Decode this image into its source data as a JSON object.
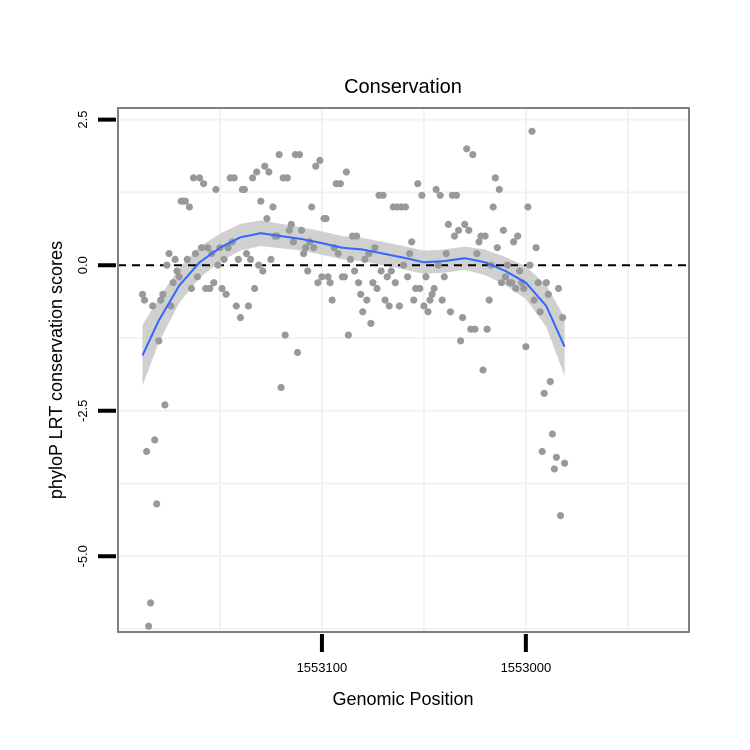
{
  "chart_data": {
    "type": "scatter",
    "title": "Conservation",
    "xlabel": "Genomic Position",
    "ylabel": "phyloP LRT conservation scores",
    "x_reversed": true,
    "xlim": [
      1553200,
      1552920
    ],
    "ylim": [
      -6.3,
      2.7
    ],
    "x_ticks": [
      {
        "value": 1553100,
        "label": "1553100"
      },
      {
        "value": 1553000,
        "label": "1553000"
      }
    ],
    "y_ticks": [
      {
        "value": 2.5,
        "label": "2.5"
      },
      {
        "value": 0,
        "label": "0.0"
      },
      {
        "value": -2.5,
        "label": "-2.5"
      },
      {
        "value": -5,
        "label": "-5.0"
      }
    ],
    "grid": true,
    "reference_line": {
      "y": 0,
      "style": "dashed"
    },
    "colors": {
      "points": "#999999",
      "smooth": "#3366ff",
      "band": "#c8c8c8",
      "frame": "#7f7f7f",
      "grid": "#f2f2f2"
    },
    "points": [
      [
        1553188,
        -0.5
      ],
      [
        1553187,
        -0.6
      ],
      [
        1553186,
        -3.2
      ],
      [
        1553185,
        -6.2
      ],
      [
        1553184,
        -5.8
      ],
      [
        1553183,
        -0.7
      ],
      [
        1553182,
        -3.0
      ],
      [
        1553181,
        -4.1
      ],
      [
        1553180,
        -1.3
      ],
      [
        1553179,
        -0.6
      ],
      [
        1553178,
        -0.5
      ],
      [
        1553177,
        -2.4
      ],
      [
        1553176,
        0.0
      ],
      [
        1553175,
        0.2
      ],
      [
        1553174,
        -0.7
      ],
      [
        1553173,
        -0.3
      ],
      [
        1553172,
        0.1
      ],
      [
        1553171,
        -0.1
      ],
      [
        1553170,
        -0.2
      ],
      [
        1553169,
        1.1
      ],
      [
        1553168,
        1.1
      ],
      [
        1553167,
        1.1
      ],
      [
        1553166,
        0.1
      ],
      [
        1553165,
        1.0
      ],
      [
        1553164,
        -0.4
      ],
      [
        1553163,
        1.5
      ],
      [
        1553162,
        0.2
      ],
      [
        1553161,
        -0.2
      ],
      [
        1553160,
        1.5
      ],
      [
        1553159,
        0.3
      ],
      [
        1553158,
        1.4
      ],
      [
        1553157,
        -0.4
      ],
      [
        1553156,
        0.3
      ],
      [
        1553155,
        -0.4
      ],
      [
        1553154,
        0.2
      ],
      [
        1553153,
        -0.3
      ],
      [
        1553152,
        1.3
      ],
      [
        1553151,
        0.0
      ],
      [
        1553150,
        0.3
      ],
      [
        1553149,
        -0.4
      ],
      [
        1553148,
        0.1
      ],
      [
        1553147,
        -0.5
      ],
      [
        1553146,
        0.3
      ],
      [
        1553145,
        1.5
      ],
      [
        1553144,
        0.4
      ],
      [
        1553143,
        1.5
      ],
      [
        1553142,
        -0.7
      ],
      [
        1553141,
        0.1
      ],
      [
        1553140,
        -0.9
      ],
      [
        1553139,
        1.3
      ],
      [
        1553138,
        1.3
      ],
      [
        1553137,
        0.2
      ],
      [
        1553136,
        -0.7
      ],
      [
        1553135,
        0.1
      ],
      [
        1553134,
        1.5
      ],
      [
        1553133,
        -0.4
      ],
      [
        1553132,
        1.6
      ],
      [
        1553131,
        0.0
      ],
      [
        1553130,
        1.1
      ],
      [
        1553129,
        -0.1
      ],
      [
        1553128,
        1.7
      ],
      [
        1553127,
        0.8
      ],
      [
        1553126,
        1.6
      ],
      [
        1553125,
        0.1
      ],
      [
        1553124,
        1.0
      ],
      [
        1553123,
        0.5
      ],
      [
        1553122,
        0.5
      ],
      [
        1553121,
        1.9
      ],
      [
        1553120,
        -2.1
      ],
      [
        1553119,
        1.5
      ],
      [
        1553118,
        -1.2
      ],
      [
        1553117,
        1.5
      ],
      [
        1553116,
        0.6
      ],
      [
        1553115,
        0.7
      ],
      [
        1553114,
        0.4
      ],
      [
        1553113,
        1.9
      ],
      [
        1553112,
        -1.5
      ],
      [
        1553111,
        1.9
      ],
      [
        1553110,
        0.6
      ],
      [
        1553109,
        0.2
      ],
      [
        1553108,
        0.3
      ],
      [
        1553107,
        -0.1
      ],
      [
        1553106,
        0.4
      ],
      [
        1553105,
        1.0
      ],
      [
        1553104,
        0.3
      ],
      [
        1553103,
        1.7
      ],
      [
        1553102,
        -0.3
      ],
      [
        1553101,
        1.8
      ],
      [
        1553100,
        -0.2
      ],
      [
        1553099,
        0.8
      ],
      [
        1553098,
        0.8
      ],
      [
        1553097,
        -0.2
      ],
      [
        1553096,
        -0.3
      ],
      [
        1553095,
        -0.6
      ],
      [
        1553094,
        0.3
      ],
      [
        1553093,
        1.4
      ],
      [
        1553092,
        0.2
      ],
      [
        1553091,
        1.4
      ],
      [
        1553090,
        -0.2
      ],
      [
        1553089,
        -0.2
      ],
      [
        1553088,
        1.6
      ],
      [
        1553087,
        -1.2
      ],
      [
        1553086,
        0.1
      ],
      [
        1553085,
        0.5
      ],
      [
        1553084,
        -0.1
      ],
      [
        1553083,
        0.5
      ],
      [
        1553082,
        -0.3
      ],
      [
        1553081,
        -0.5
      ],
      [
        1553080,
        -0.8
      ],
      [
        1553079,
        0.1
      ],
      [
        1553078,
        -0.6
      ],
      [
        1553077,
        0.2
      ],
      [
        1553076,
        -1.0
      ],
      [
        1553075,
        -0.3
      ],
      [
        1553074,
        0.3
      ],
      [
        1553073,
        -0.4
      ],
      [
        1553072,
        1.2
      ],
      [
        1553071,
        -0.1
      ],
      [
        1553070,
        1.2
      ],
      [
        1553069,
        -0.6
      ],
      [
        1553068,
        -0.2
      ],
      [
        1553067,
        -0.7
      ],
      [
        1553066,
        -0.1
      ],
      [
        1553065,
        1.0
      ],
      [
        1553064,
        -0.3
      ],
      [
        1553063,
        1.0
      ],
      [
        1553062,
        -0.7
      ],
      [
        1553061,
        1.0
      ],
      [
        1553060,
        0.0
      ],
      [
        1553059,
        1.0
      ],
      [
        1553058,
        -0.2
      ],
      [
        1553057,
        0.2
      ],
      [
        1553056,
        0.4
      ],
      [
        1553055,
        -0.6
      ],
      [
        1553054,
        -0.4
      ],
      [
        1553053,
        1.4
      ],
      [
        1553052,
        -0.4
      ],
      [
        1553051,
        1.2
      ],
      [
        1553050,
        -0.7
      ],
      [
        1553049,
        -0.2
      ],
      [
        1553048,
        -0.8
      ],
      [
        1553047,
        -0.6
      ],
      [
        1553046,
        -0.5
      ],
      [
        1553045,
        -0.4
      ],
      [
        1553044,
        1.3
      ],
      [
        1553043,
        0.0
      ],
      [
        1553042,
        1.2
      ],
      [
        1553041,
        -0.6
      ],
      [
        1553040,
        -0.2
      ],
      [
        1553039,
        0.2
      ],
      [
        1553038,
        0.7
      ],
      [
        1553037,
        -0.8
      ],
      [
        1553036,
        1.2
      ],
      [
        1553035,
        0.5
      ],
      [
        1553034,
        1.2
      ],
      [
        1553033,
        0.6
      ],
      [
        1553032,
        -1.3
      ],
      [
        1553031,
        -0.9
      ],
      [
        1553030,
        0.7
      ],
      [
        1553029,
        2.0
      ],
      [
        1553028,
        0.6
      ],
      [
        1553027,
        -1.1
      ],
      [
        1553026,
        1.9
      ],
      [
        1553025,
        -1.1
      ],
      [
        1553024,
        0.2
      ],
      [
        1553023,
        0.4
      ],
      [
        1553022,
        0.5
      ],
      [
        1553021,
        -1.8
      ],
      [
        1553020,
        0.5
      ],
      [
        1553019,
        -1.1
      ],
      [
        1553018,
        -0.6
      ],
      [
        1553017,
        0.0
      ],
      [
        1553016,
        1.0
      ],
      [
        1553015,
        1.5
      ],
      [
        1553014,
        0.3
      ],
      [
        1553013,
        1.3
      ],
      [
        1553012,
        -0.3
      ],
      [
        1553011,
        0.6
      ],
      [
        1553010,
        -0.2
      ],
      [
        1553009,
        0.0
      ],
      [
        1553008,
        -0.3
      ],
      [
        1553007,
        -0.3
      ],
      [
        1553006,
        0.4
      ],
      [
        1553005,
        -0.4
      ],
      [
        1553004,
        0.5
      ],
      [
        1553003,
        -0.1
      ],
      [
        1553002,
        -0.3
      ],
      [
        1553001,
        -0.4
      ],
      [
        1553000,
        -1.4
      ],
      [
        1552999,
        1.0
      ],
      [
        1552998,
        0.0
      ],
      [
        1552997,
        2.3
      ],
      [
        1552996,
        -0.6
      ],
      [
        1552995,
        0.3
      ],
      [
        1552994,
        -0.3
      ],
      [
        1552993,
        -0.8
      ],
      [
        1552992,
        -3.2
      ],
      [
        1552991,
        -2.2
      ],
      [
        1552990,
        -0.3
      ],
      [
        1552989,
        -0.5
      ],
      [
        1552988,
        -2.0
      ],
      [
        1552987,
        -2.9
      ],
      [
        1552986,
        -3.5
      ],
      [
        1552985,
        -3.3
      ],
      [
        1552984,
        -0.4
      ],
      [
        1552983,
        -4.3
      ],
      [
        1552982,
        -0.9
      ],
      [
        1552981,
        -3.4
      ]
    ],
    "smooth": [
      [
        1553188,
        -1.55
      ],
      [
        1553180,
        -0.95
      ],
      [
        1553170,
        -0.35
      ],
      [
        1553160,
        0.05
      ],
      [
        1553150,
        0.3
      ],
      [
        1553140,
        0.48
      ],
      [
        1553130,
        0.55
      ],
      [
        1553120,
        0.5
      ],
      [
        1553110,
        0.45
      ],
      [
        1553100,
        0.38
      ],
      [
        1553090,
        0.3
      ],
      [
        1553080,
        0.27
      ],
      [
        1553070,
        0.2
      ],
      [
        1553060,
        0.13
      ],
      [
        1553050,
        0.05
      ],
      [
        1553040,
        0.07
      ],
      [
        1553030,
        0.12
      ],
      [
        1553020,
        0.05
      ],
      [
        1553010,
        -0.1
      ],
      [
        1553000,
        -0.3
      ],
      [
        1552990,
        -0.7
      ],
      [
        1552981,
        -1.4
      ]
    ],
    "band_halfwidth": [
      0.52,
      0.38,
      0.3,
      0.27,
      0.24,
      0.23,
      0.22,
      0.21,
      0.2,
      0.2,
      0.2,
      0.2,
      0.2,
      0.2,
      0.2,
      0.2,
      0.2,
      0.22,
      0.24,
      0.28,
      0.36,
      0.5
    ]
  }
}
